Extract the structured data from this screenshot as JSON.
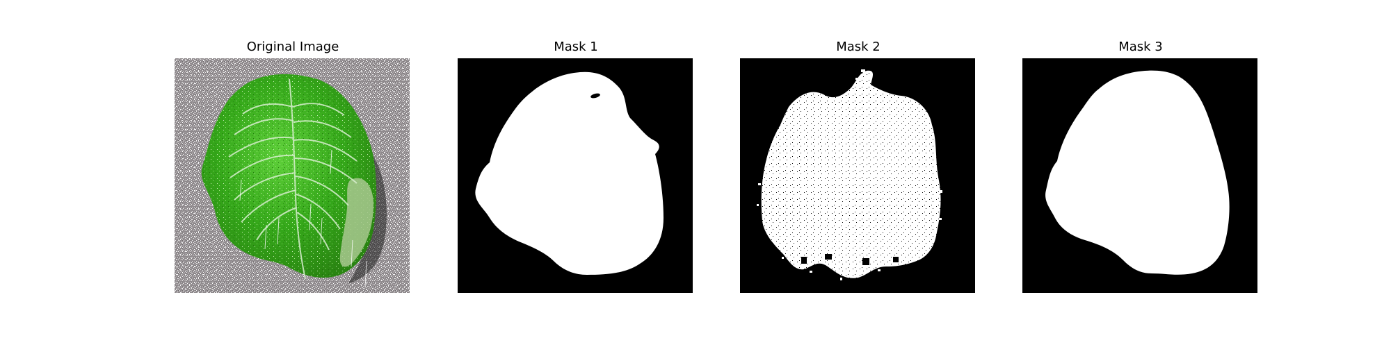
{
  "figure": {
    "panels": [
      {
        "title": "Original Image",
        "kind": "photo"
      },
      {
        "title": "Mask 1",
        "kind": "mask"
      },
      {
        "title": "Mask 2",
        "kind": "mask"
      },
      {
        "title": "Mask 3",
        "kind": "mask"
      }
    ]
  },
  "colors": {
    "background": "#ffffff",
    "mask_fg": "#ffffff",
    "mask_bg": "#000000",
    "ground": "#8f8a8d",
    "leaf_dark": "#2f8a12",
    "leaf_mid": "#3fb41c",
    "leaf_light": "#8ee26a",
    "vein": "#d8efcf"
  }
}
